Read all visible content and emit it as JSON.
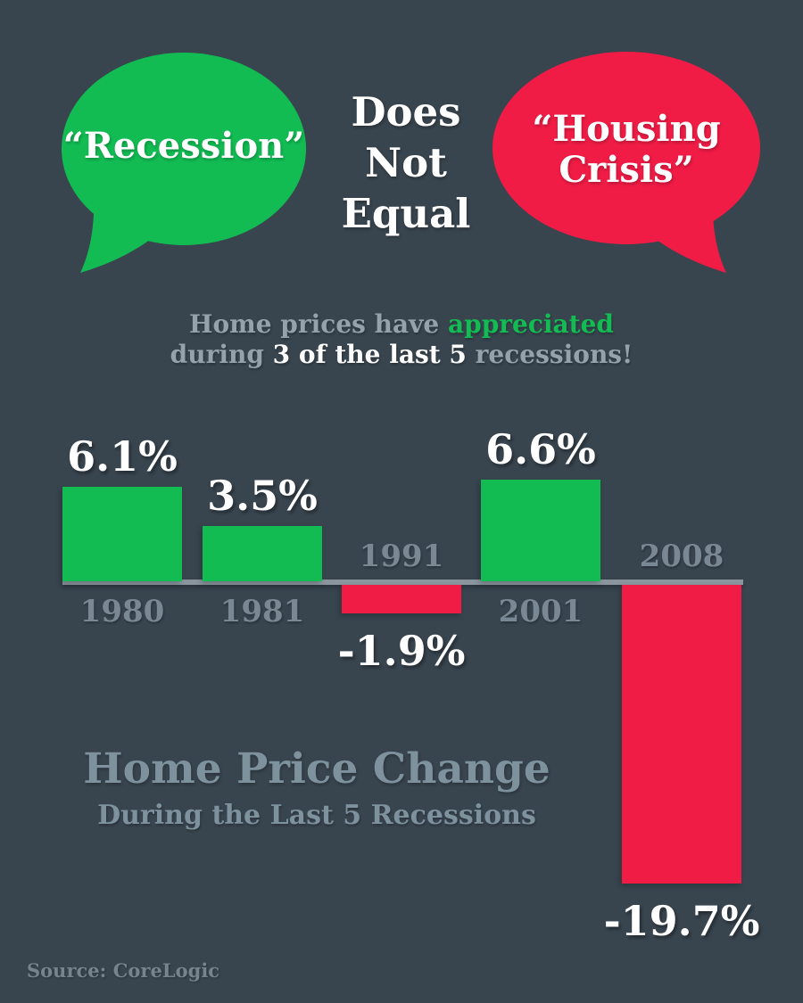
{
  "header": {
    "recession_label": "“Recession”",
    "not_equal_lines": [
      "Does",
      "Not",
      "Equal"
    ],
    "housing_lines": [
      "“Housing",
      "Crisis”"
    ]
  },
  "tagline": {
    "line1": [
      {
        "text": "Home prices have ",
        "style": "gray"
      },
      {
        "text": "appreciated",
        "style": "green"
      }
    ],
    "line2": [
      {
        "text": "during ",
        "style": "gray"
      },
      {
        "text": "3 of the last 5",
        "style": "white"
      },
      {
        "text": " recessions!",
        "style": "gray"
      }
    ]
  },
  "chart_data": {
    "type": "bar",
    "categories": [
      "1980",
      "1981",
      "1991",
      "2001",
      "2008"
    ],
    "values": [
      6.1,
      3.5,
      -1.9,
      6.6,
      -19.7
    ],
    "value_labels": [
      "6.1%",
      "3.5%",
      "-1.9%",
      "6.6%",
      "-19.7%"
    ],
    "title": "Home Price Change",
    "subtitle": "During the Last 5 Recessions",
    "unit": "percent home price change",
    "baseline": 0,
    "grid": false,
    "legend": false,
    "positive_color": "#12BC53",
    "negative_color": "#F01C46",
    "axis_color": "#8A959D"
  },
  "footer": {
    "source": "Source: CoreLogic"
  },
  "colors": {
    "background": "#38444E",
    "green": "#12BC53",
    "red": "#F01C46",
    "white": "#FFFFFF",
    "axis_gray": "#8A959D",
    "year_gray": "#7A8893",
    "title_gray": "#7E929D",
    "tagline_gray": "#95A1AB",
    "source_gray": "#76848E"
  }
}
